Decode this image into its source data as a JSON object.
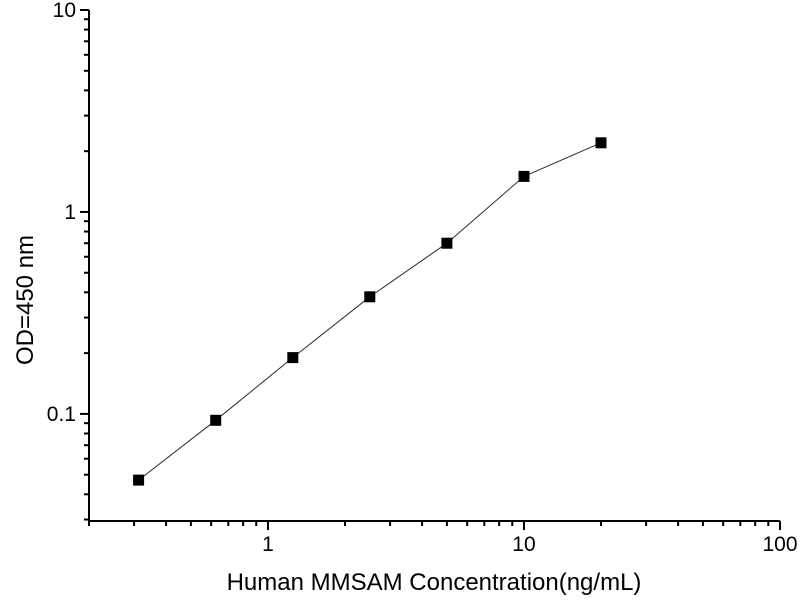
{
  "figure": {
    "background": "#ffffff",
    "axis_color": "#000000",
    "line_color": "#2a2a2a",
    "marker_color": "#000000"
  },
  "chart_data": {
    "type": "scatter",
    "subtype": "line-with-square-markers",
    "x": [
      0.3125,
      0.625,
      1.25,
      2.5,
      5,
      10,
      20
    ],
    "y": [
      0.047,
      0.093,
      0.19,
      0.38,
      0.7,
      1.5,
      2.2
    ],
    "title": "",
    "xlabel": "Human MMSAM Concentration(ng/mL)",
    "ylabel": "OD=450 nm",
    "xscale": "log",
    "yscale": "log",
    "xlim": [
      0.2,
      100
    ],
    "ylim": [
      0.0295,
      10
    ],
    "x_major_ticks": [
      1,
      10,
      100
    ],
    "x_major_tick_labels": [
      "1",
      "10",
      "100"
    ],
    "y_major_ticks": [
      0.1,
      1,
      10
    ],
    "y_major_tick_labels": [
      "0.1",
      "1",
      "10"
    ],
    "grid": false,
    "legend": null,
    "marker": "filled-square"
  }
}
